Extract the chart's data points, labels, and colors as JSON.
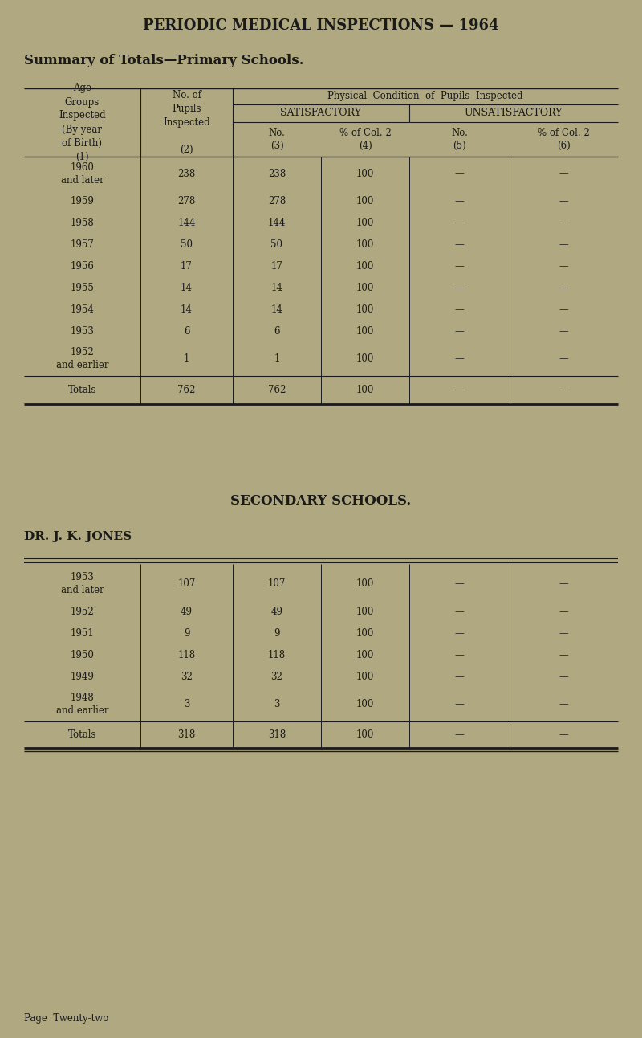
{
  "bg_color": "#b0a880",
  "text_color": "#1a1a1a",
  "title": "PERIODIC MEDICAL INSPECTIONS — 1964",
  "subtitle": "Summary of Totals—Primary Schools.",
  "secondary_title": "SECONDARY SCHOOLS.",
  "secondary_subtitle": "DR. J. K. JONES",
  "page_footer": "Page  Twenty-two",
  "primary_rows": [
    [
      "1960\nand later",
      "238",
      "238",
      "100",
      "—",
      "—"
    ],
    [
      "1959",
      "278",
      "278",
      "100",
      "—",
      "—"
    ],
    [
      "1958",
      "144",
      "144",
      "100",
      "—",
      "—"
    ],
    [
      "1957",
      "50",
      "50",
      "100",
      "—",
      "—"
    ],
    [
      "1956",
      "17",
      "17",
      "100",
      "—",
      "—"
    ],
    [
      "1955",
      "14",
      "14",
      "100",
      "—",
      "—"
    ],
    [
      "1954",
      "14",
      "14",
      "100",
      "—",
      "—"
    ],
    [
      "1953",
      "6",
      "6",
      "100",
      "—",
      "—"
    ],
    [
      "1952\nand earlier",
      "1",
      "1",
      "100",
      "—",
      "—"
    ]
  ],
  "primary_totals": [
    "Totals",
    "762",
    "762",
    "100",
    "—",
    "—"
  ],
  "secondary_rows": [
    [
      "1953\nand later",
      "107",
      "107",
      "100",
      "—",
      "—"
    ],
    [
      "1952",
      "49",
      "49",
      "100",
      "—",
      "—"
    ],
    [
      "1951",
      "9",
      "9",
      "100",
      "—",
      "—"
    ],
    [
      "1950",
      "118",
      "118",
      "100",
      "—",
      "—"
    ],
    [
      "1949",
      "32",
      "32",
      "100",
      "—",
      "—"
    ],
    [
      "1948\nand earlier",
      "3",
      "3",
      "100",
      "—",
      "—"
    ]
  ],
  "secondary_totals": [
    "Totals",
    "318",
    "318",
    "100",
    "—",
    "—"
  ]
}
